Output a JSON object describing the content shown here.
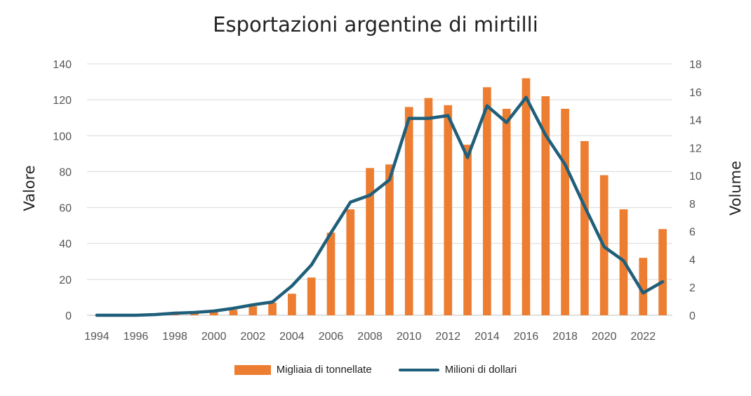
{
  "chart_data": {
    "type": "bar",
    "title": "Esportazioni argentine di mirtilli",
    "ylabel": "Valore",
    "y2label": "Volume",
    "ylim": [
      0,
      140
    ],
    "yticks": [
      0,
      20,
      40,
      60,
      80,
      100,
      120,
      140
    ],
    "y2lim": [
      0,
      18
    ],
    "y2ticks": [
      0,
      2,
      4,
      6,
      8,
      10,
      12,
      14,
      16,
      18
    ],
    "categories": [
      1994,
      1995,
      1996,
      1997,
      1998,
      1999,
      2000,
      2001,
      2002,
      2003,
      2004,
      2005,
      2006,
      2007,
      2008,
      2009,
      2010,
      2011,
      2012,
      2013,
      2014,
      2015,
      2016,
      2017,
      2018,
      2019,
      2020,
      2021,
      2022,
      2023
    ],
    "xtick_labels": [
      "1994",
      "1996",
      "1998",
      "2000",
      "2002",
      "2004",
      "2006",
      "2008",
      "2010",
      "2012",
      "2014",
      "2016",
      "2018",
      "2020",
      "2022"
    ],
    "grid": true,
    "legend_position": "bottom",
    "series": [
      {
        "name": "Migliaia di tonnellate",
        "kind": "bar",
        "axis": "left",
        "color": "#ED7D31",
        "values": [
          0,
          0,
          0,
          0,
          0.5,
          1,
          2,
          3,
          5,
          7,
          12,
          21,
          46,
          59,
          82,
          84,
          116,
          121,
          117,
          95,
          127,
          115,
          132,
          122,
          115,
          97,
          78,
          59,
          32,
          48
        ]
      },
      {
        "name": "Milioni di dollari",
        "kind": "line",
        "axis": "right",
        "color": "#1F5F7A",
        "values": [
          0,
          0,
          0,
          0.05,
          0.15,
          0.2,
          0.3,
          0.5,
          0.75,
          0.95,
          2.1,
          3.6,
          5.9,
          8.1,
          8.6,
          9.7,
          14.1,
          14.1,
          14.3,
          11.3,
          15.0,
          13.8,
          15.6,
          12.9,
          10.8,
          7.8,
          4.9,
          3.9,
          1.6,
          2.4
        ]
      }
    ]
  }
}
